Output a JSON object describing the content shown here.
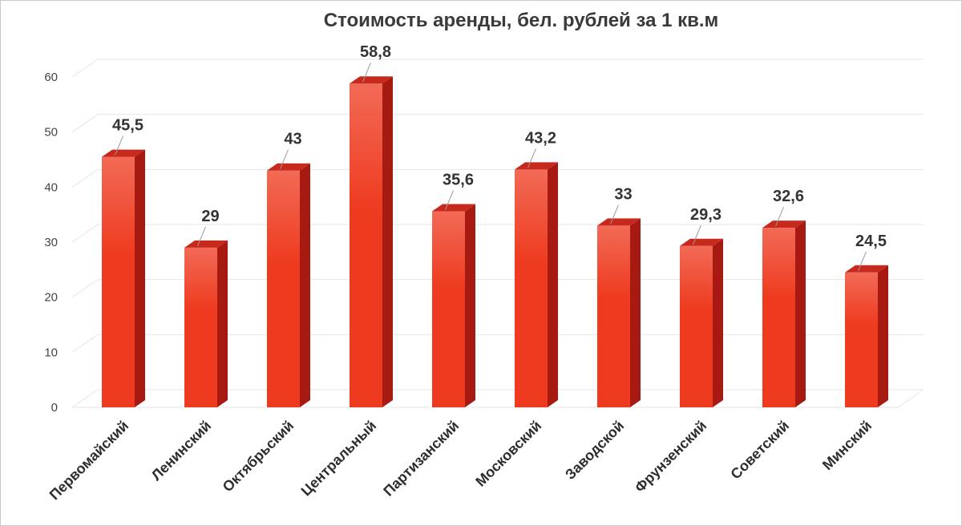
{
  "chart_data": {
    "type": "bar",
    "title": "Стоимость аренды, бел. рублей за 1 кв.м",
    "xlabel": "",
    "ylabel": "",
    "categories": [
      "Первомайский",
      "Ленинский",
      "Октябрьский",
      "Центральный",
      "Партизанский",
      "Московский",
      "Заводской",
      "Фрунзенский",
      "Советский",
      "Минский"
    ],
    "values": [
      45.5,
      29,
      43,
      58.8,
      35.6,
      43.2,
      33,
      29.3,
      32.6,
      24.5
    ],
    "data_labels": [
      "45,5",
      "29",
      "43",
      "58,8",
      "35,6",
      "43,2",
      "33",
      "29,3",
      "32,6",
      "24,5"
    ],
    "ylim": [
      0,
      60
    ],
    "yticks": [
      0,
      10,
      20,
      30,
      40,
      50,
      60
    ],
    "grid": true,
    "legend": "none",
    "colors": {
      "bar_front": "#ee3a1e",
      "bar_front_top": "#f26a56",
      "bar_side": "#a71a12",
      "bar_top": "#c7291c",
      "grid": "#e6e6e6",
      "leader": "#9a9a9a"
    }
  }
}
